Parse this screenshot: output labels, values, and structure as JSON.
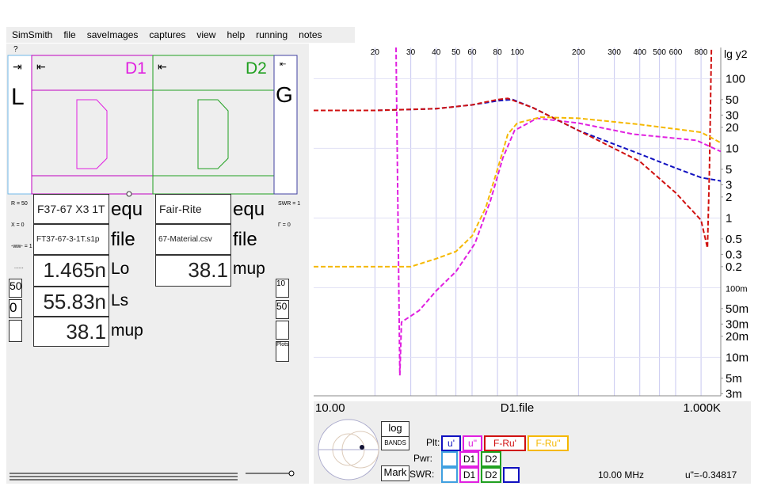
{
  "menu": [
    "SimSmith",
    "file",
    "saveImages",
    "captures",
    "view",
    "help",
    "running",
    "notes"
  ],
  "help_mark": "?",
  "circuit": {
    "load": {
      "arrow": "⇥",
      "label": "L"
    },
    "d1": {
      "arrow": "⇤",
      "label": "D1"
    },
    "d2": {
      "arrow": "⇤",
      "label": "D2"
    },
    "generator": {
      "arrow": "⇤",
      "label": "G"
    }
  },
  "load_info": {
    "r": "R = 50",
    "x": "X = 0",
    "q": "-ww- = 1",
    "dots": "......",
    "box1": "50",
    "box2": "0"
  },
  "gen_info": {
    "swr": "SWR = 1",
    "gamma": "Γ = 0",
    "box1": "10",
    "box2": "50",
    "plots": "Plots"
  },
  "d1_fields": [
    {
      "value": "F37-67 X3 1T",
      "label": "equ"
    },
    {
      "value": "FT37-67-3-1T.s1p",
      "label": "file"
    },
    {
      "value": "1.465n",
      "label": "Lo"
    },
    {
      "value": "55.83n",
      "label": "Ls"
    },
    {
      "value": "38.1",
      "label": "mup"
    }
  ],
  "d2_fields": [
    {
      "value": "Fair-Rite",
      "label": "equ"
    },
    {
      "value": "67-Material.csv",
      "label": "file"
    },
    {
      "value": "38.1",
      "label": "mup"
    }
  ],
  "plot": {
    "type": "line",
    "x_scale": "log",
    "y_scale": "log",
    "grid": true,
    "y_label": "lg y2",
    "x_labels": [
      "10.00",
      "D1.file",
      "1.000K"
    ],
    "xlim": [
      10,
      1000
    ],
    "ylim": [
      0.0028,
      280
    ],
    "xticks": [
      20,
      30,
      40,
      50,
      60,
      80,
      100,
      200,
      300,
      400,
      500,
      600,
      800
    ],
    "yticks": [
      100,
      50,
      30,
      20,
      10,
      5,
      3,
      2,
      1,
      0.5,
      0.3,
      0.2,
      {
        "value": 0.1,
        "label": "100m"
      },
      {
        "value": 0.05,
        "label": "50m"
      },
      {
        "value": 0.03,
        "label": "30m"
      },
      {
        "value": 0.02,
        "label": "20m"
      },
      {
        "value": 0.01,
        "label": "10m"
      },
      {
        "value": 0.005,
        "label": "5m"
      },
      {
        "value": 0.003,
        "label": "3m"
      }
    ],
    "series": [
      {
        "name": "u'",
        "color": "#1010c0",
        "x": [
          10,
          20,
          40,
          60,
          80,
          95,
          120,
          200,
          400,
          600,
          800,
          1000
        ],
        "values": [
          35,
          35,
          37,
          42,
          48,
          50,
          38,
          18,
          8.3,
          5.2,
          3.8,
          3.4
        ]
      },
      {
        "name": "u\"",
        "color": "#e020e0",
        "x": [
          25.4,
          26.5,
          27,
          33,
          40,
          50,
          62,
          74,
          85,
          97,
          125,
          200,
          370,
          760,
          1000
        ],
        "values": [
          280,
          0.0055,
          0.032,
          0.047,
          0.09,
          0.17,
          0.43,
          1.8,
          7.3,
          18,
          27,
          23,
          16,
          13,
          9
        ]
      },
      {
        "name": "F-Ru'",
        "color": "#d01010",
        "x": [
          10,
          20,
          40,
          60,
          80,
          90,
          120,
          200,
          400,
          600,
          800,
          860,
          880,
          900
        ],
        "values": [
          35,
          35,
          37,
          42,
          50,
          52,
          38,
          18,
          6.5,
          2.3,
          0.93,
          0.37,
          5,
          280
        ]
      },
      {
        "name": "F-Ru\"",
        "color": "#f5b800",
        "x": [
          10,
          30,
          40,
          50,
          60,
          70,
          80,
          90,
          100,
          130,
          200,
          400,
          800,
          1000
        ],
        "values": [
          0.2,
          0.2,
          0.26,
          0.33,
          0.55,
          1.4,
          5,
          16,
          23,
          28,
          27,
          22,
          17,
          12
        ]
      }
    ]
  },
  "controls": {
    "log": "log",
    "bands": "BANDS",
    "mark": "Mark",
    "plt": "Plt:",
    "pwr": "Pwr:",
    "pwr_buttons": [
      "D1",
      "D2"
    ],
    "swr": "SWR:",
    "swr_buttons": [
      "D1",
      "D2"
    ],
    "frequency": "10.00 MHz",
    "readout": "u\"=-0.34817"
  }
}
